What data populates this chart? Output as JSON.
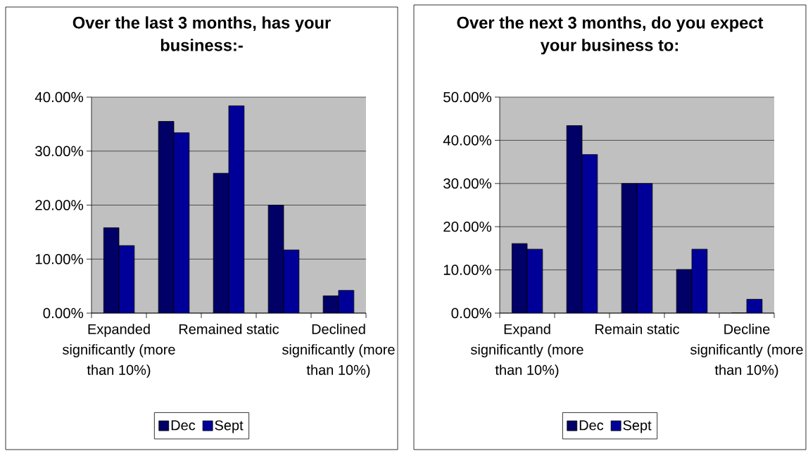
{
  "chart_data": [
    {
      "type": "bar",
      "title": "Over the last 3 months, has your business:-",
      "categories": [
        "Expanded significantly (more than 10%)",
        null,
        "Remained static",
        null,
        "Declined significantly (more than 10%)"
      ],
      "series": [
        {
          "name": "Dec",
          "color": "#000066",
          "values": [
            15.8,
            35.5,
            25.9,
            20.0,
            3.2
          ]
        },
        {
          "name": "Sept",
          "color": "#000099",
          "values": [
            12.5,
            33.4,
            38.4,
            11.7,
            4.2
          ]
        }
      ],
      "ylim": [
        0,
        40
      ],
      "yticks": [
        {
          "value": 0,
          "label": "0.00%"
        },
        {
          "value": 10,
          "label": "10.00%"
        },
        {
          "value": 20,
          "label": "20.00%"
        },
        {
          "value": 30,
          "label": "30.00%"
        },
        {
          "value": 40,
          "label": "40.00%"
        }
      ],
      "grid": "y",
      "legend": "bottom"
    },
    {
      "type": "bar",
      "title": "Over the next 3 months, do you expect your business to:",
      "categories": [
        "Expand significantly (more than 10%)",
        null,
        "Remain static",
        null,
        "Decline significantly (more than 10%)"
      ],
      "series": [
        {
          "name": "Dec",
          "color": "#000066",
          "values": [
            16.1,
            43.4,
            30.0,
            10.1,
            0
          ]
        },
        {
          "name": "Sept",
          "color": "#000099",
          "values": [
            14.8,
            36.7,
            30.0,
            14.8,
            3.2
          ]
        }
      ],
      "ylim": [
        0,
        50
      ],
      "yticks": [
        {
          "value": 0,
          "label": "0.00%"
        },
        {
          "value": 10,
          "label": "10.00%"
        },
        {
          "value": 20,
          "label": "20.00%"
        },
        {
          "value": 30,
          "label": "30.00%"
        },
        {
          "value": 40,
          "label": "40.00%"
        },
        {
          "value": 50,
          "label": "50.00%"
        }
      ],
      "grid": "y",
      "legend": "bottom"
    }
  ]
}
